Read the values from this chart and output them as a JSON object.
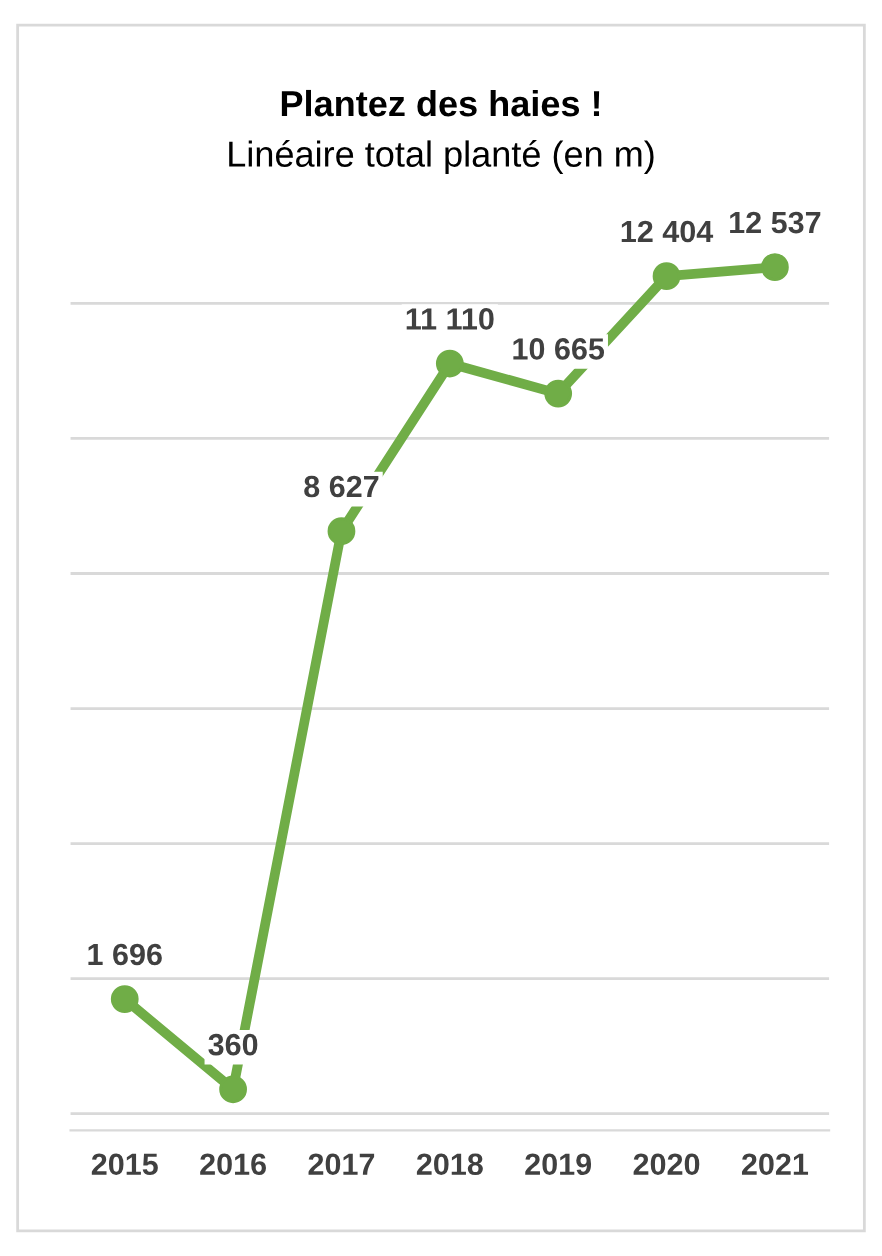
{
  "chart_data": {
    "type": "line",
    "title": "Plantez des haies !",
    "subtitle": "Linéaire total planté (en m)",
    "categories": [
      "2015",
      "2016",
      "2017",
      "2018",
      "2019",
      "2020",
      "2021"
    ],
    "series": [
      {
        "color": "#70ad47",
        "values": [
          1696,
          360,
          8627,
          11110,
          10665,
          12404,
          12537
        ]
      }
    ],
    "data_labels": true,
    "tick_labels": "x",
    "grid": "y",
    "marker": "circle",
    "line_style": "solid",
    "legend": false
  }
}
